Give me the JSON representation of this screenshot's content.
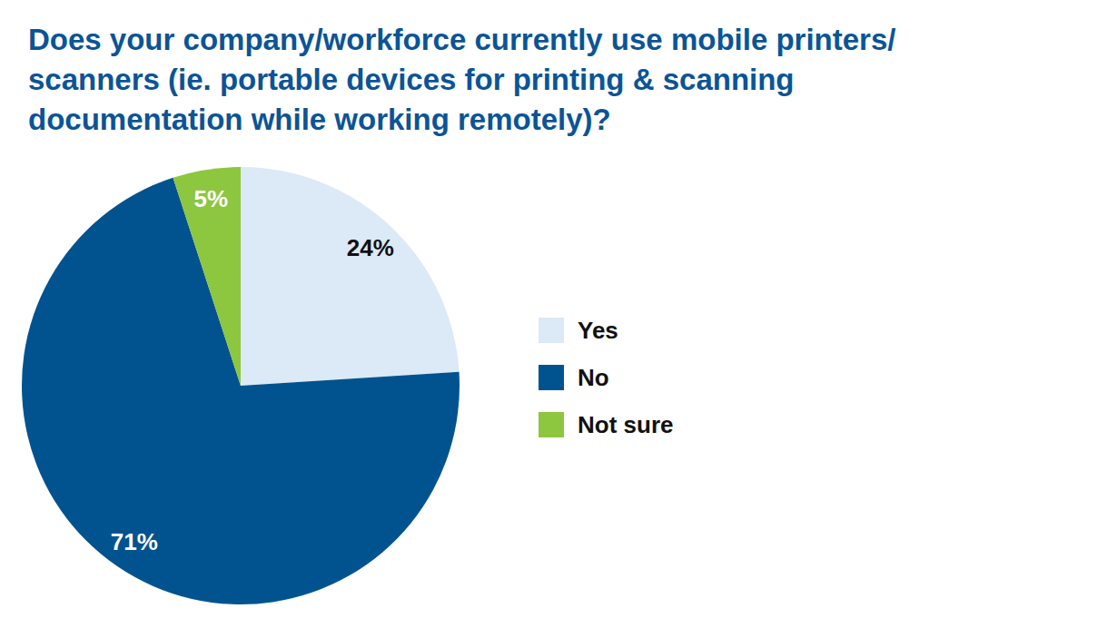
{
  "chart_data": {
    "type": "pie",
    "title": "Does your company/workforce currently use mobile printers/\nscanners (ie. portable devices for printing & scanning\ndocumentation while working remotely)?",
    "categories": [
      "Yes",
      "No",
      "Not sure"
    ],
    "values": [
      24,
      71,
      5
    ],
    "value_labels": [
      "24%",
      "71%",
      "5%"
    ],
    "colors": [
      "#dce9f7",
      "#00538f",
      "#8dc63f"
    ],
    "data_labels": true,
    "legend": "right"
  }
}
